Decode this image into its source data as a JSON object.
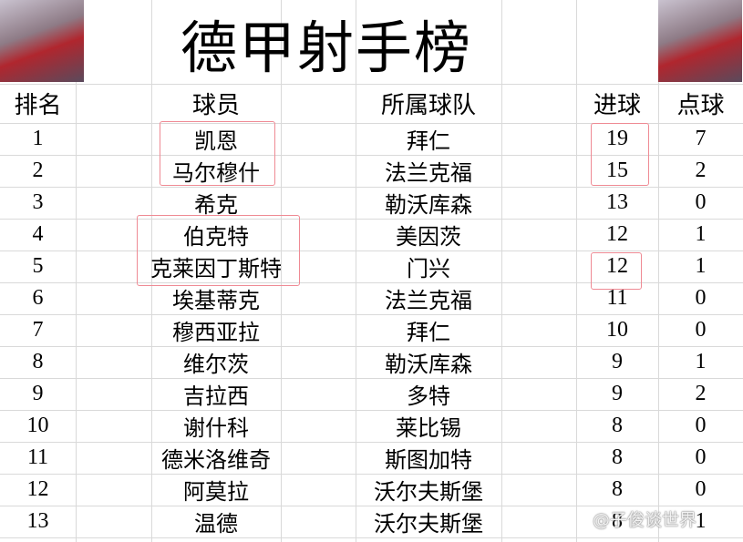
{
  "header": {
    "title": "德甲射手榜"
  },
  "table": {
    "columns": [
      "排名",
      "球员",
      "所属球队",
      "进球",
      "点球"
    ],
    "rows": [
      [
        1,
        "凯恩",
        "拜仁",
        19,
        7
      ],
      [
        2,
        "马尔穆什",
        "法兰克福",
        15,
        2
      ],
      [
        3,
        "希克",
        "勒沃库森",
        13,
        0
      ],
      [
        4,
        "伯克特",
        "美因茨",
        12,
        1
      ],
      [
        5,
        "克莱因丁斯特",
        "门兴",
        12,
        1
      ],
      [
        6,
        "埃基蒂克",
        "法兰克福",
        11,
        0
      ],
      [
        7,
        "穆西亚拉",
        "拜仁",
        10,
        0
      ],
      [
        8,
        "维尔茨",
        "勒沃库森",
        9,
        1
      ],
      [
        9,
        "吉拉西",
        "多特",
        9,
        2
      ],
      [
        10,
        "谢什科",
        "莱比锡",
        8,
        0
      ],
      [
        11,
        "德米洛维奇",
        "斯图加特",
        8,
        0
      ],
      [
        12,
        "阿莫拉",
        "沃尔夫斯堡",
        8,
        0
      ],
      [
        13,
        "温德",
        "沃尔夫斯堡",
        8,
        1
      ]
    ]
  },
  "watermark": "@子俊谈世界"
}
